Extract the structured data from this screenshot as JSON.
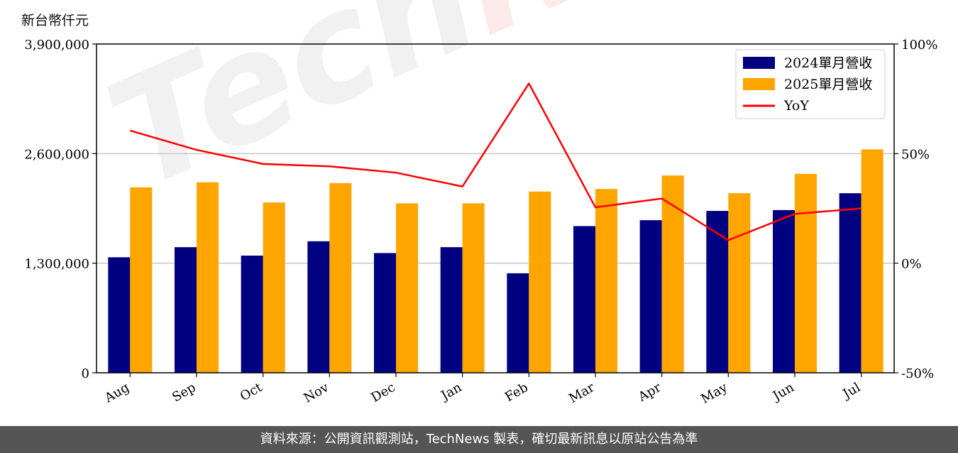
{
  "unit_label": "新台幣仟元",
  "footer_text": "資料來源：公開資訊觀測站，TechNews 製表，確切最新訊息以原站公告為準",
  "watermark": {
    "part1": "Tech",
    "part2": "News"
  },
  "chart_data": {
    "type": "bar",
    "categories": [
      "Aug",
      "Sep",
      "Oct",
      "Nov",
      "Dec",
      "Jan",
      "Feb",
      "Mar",
      "Apr",
      "May",
      "Jun",
      "Jul"
    ],
    "series": [
      {
        "name": "2024單月營收",
        "type": "bar",
        "axis": "left",
        "color": "#000080",
        "values": [
          1370000,
          1490000,
          1390000,
          1560000,
          1420000,
          1490000,
          1180000,
          1740000,
          1810000,
          1920000,
          1930000,
          2130000
        ]
      },
      {
        "name": "2025單月營收",
        "type": "bar",
        "axis": "left",
        "color": "#FFA500",
        "values": [
          2200000,
          2260000,
          2020000,
          2250000,
          2010000,
          2010000,
          2150000,
          2180000,
          2340000,
          2130000,
          2360000,
          2650000
        ]
      },
      {
        "name": "YoY",
        "type": "line",
        "axis": "right",
        "color": "#FF0000",
        "values": [
          60.5,
          51.7,
          45.3,
          44.2,
          41.3,
          35.0,
          82.0,
          25.5,
          29.5,
          10.5,
          22.5,
          25.0
        ]
      }
    ],
    "y_left": {
      "ylim": [
        0,
        3900000
      ],
      "ticks": [
        "0",
        "1,300,000",
        "2,600,000",
        "3,900,000"
      ],
      "tick_values": [
        0,
        1300000,
        2600000,
        3900000
      ]
    },
    "y_right": {
      "ylim": [
        -50,
        100
      ],
      "ticks": [
        "-50%",
        "0%",
        "50%",
        "100%"
      ],
      "tick_values": [
        -50,
        0,
        50,
        100
      ]
    },
    "grid": "horizontal",
    "legend_position": "top-right"
  }
}
